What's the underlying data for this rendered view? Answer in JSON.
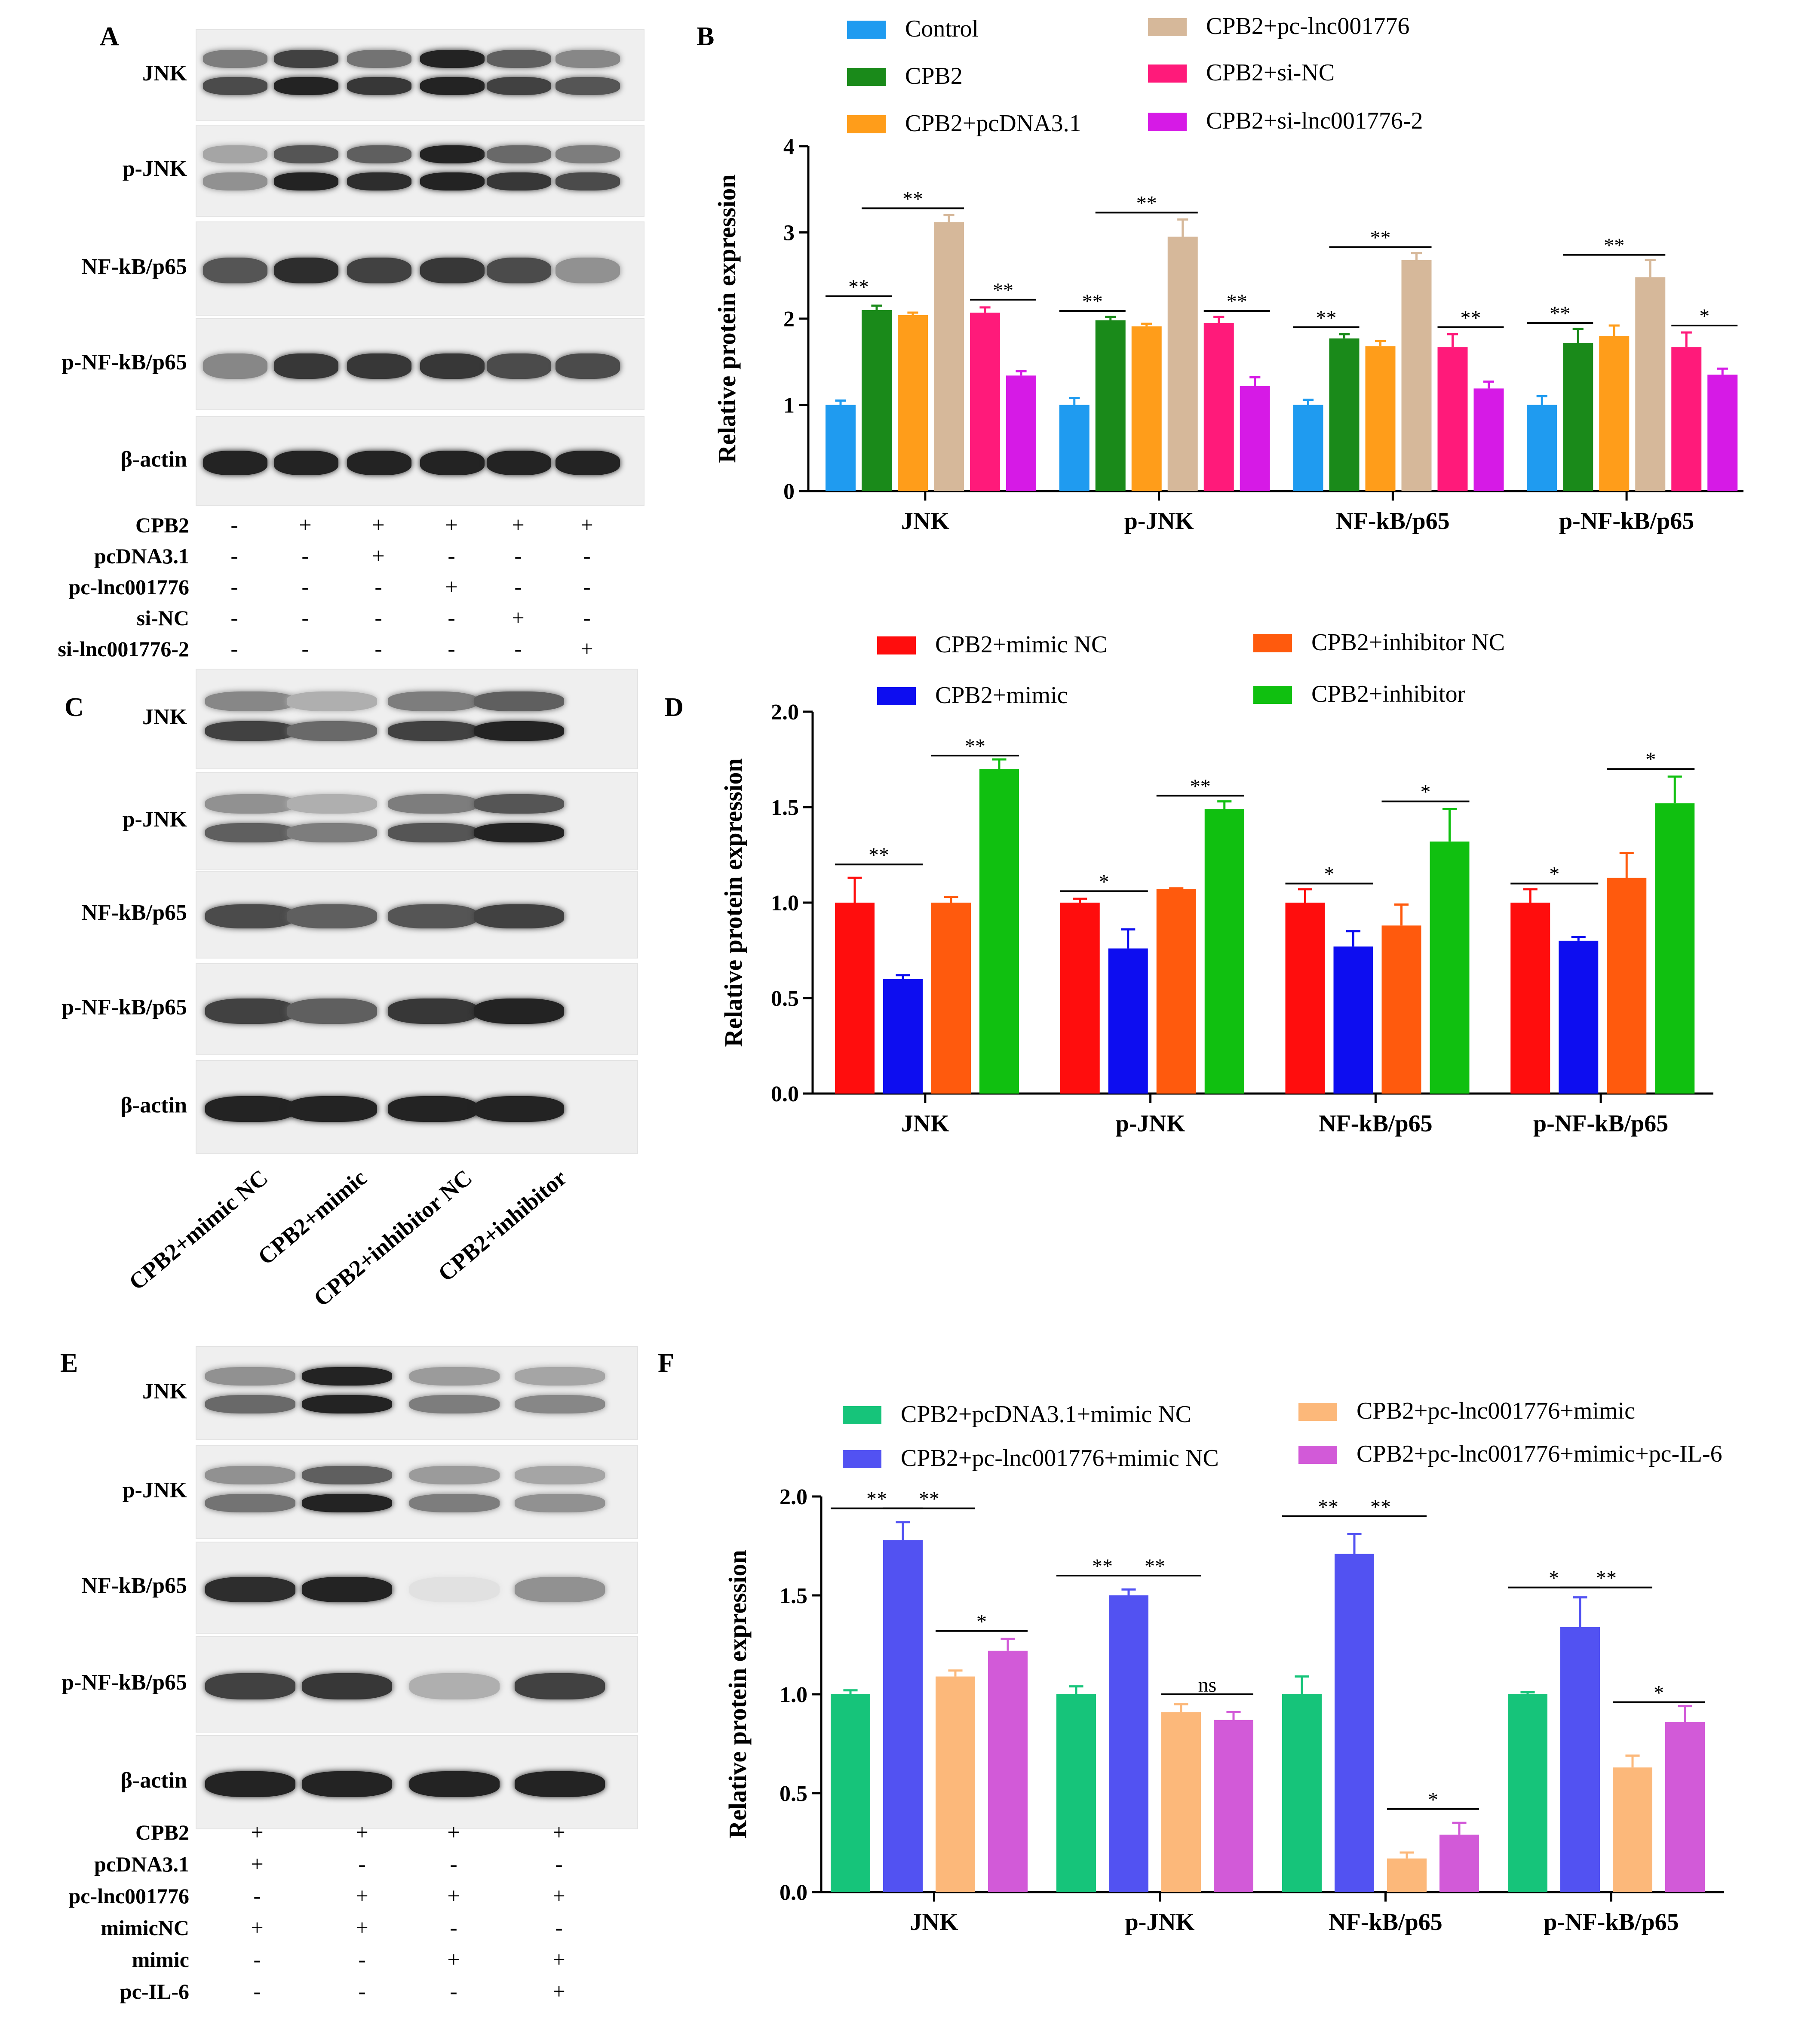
{
  "panel_letters": {
    "A": "A",
    "B": "B",
    "C": "C",
    "D": "D",
    "E": "E",
    "F": "F"
  },
  "blot_labels": [
    "JNK",
    "p-JNK",
    "NF-kB/p65",
    "p-NF-kB/p65",
    "β-actin"
  ],
  "treatment_A": {
    "rows": [
      {
        "label": "CPB2",
        "signs": [
          "-",
          "+",
          "+",
          "+",
          "+",
          "+"
        ]
      },
      {
        "label": "pcDNA3.1",
        "signs": [
          "-",
          "-",
          "+",
          "-",
          "-",
          "-"
        ]
      },
      {
        "label": "pc-lnc001776",
        "signs": [
          "-",
          "-",
          "-",
          "+",
          "-",
          "-"
        ]
      },
      {
        "label": "si-NC",
        "signs": [
          "-",
          "-",
          "-",
          "-",
          "+",
          "-"
        ]
      },
      {
        "label": "si-lnc001776-2",
        "signs": [
          "-",
          "-",
          "-",
          "-",
          "-",
          "+"
        ]
      }
    ]
  },
  "lane_labels_C": [
    "CPB2+mimic NC",
    "CPB2+mimic",
    "CPB2+inhibitor NC",
    "CPB2+inhibitor"
  ],
  "treatment_E": {
    "rows": [
      {
        "label": "CPB2",
        "signs": [
          "+",
          "+",
          "+",
          "+"
        ]
      },
      {
        "label": "pcDNA3.1",
        "signs": [
          "+",
          "-",
          "-",
          "-"
        ]
      },
      {
        "label": "pc-lnc001776",
        "signs": [
          "-",
          "+",
          "+",
          "+"
        ]
      },
      {
        "label": "mimicNC",
        "signs": [
          "+",
          "+",
          "-",
          "-"
        ]
      },
      {
        "label": "mimic",
        "signs": [
          "-",
          "-",
          "+",
          "+"
        ]
      },
      {
        "label": "pc-IL-6",
        "signs": [
          "-",
          "-",
          "-",
          "+"
        ]
      }
    ]
  },
  "chart_data": [
    {
      "id": "B",
      "type": "bar",
      "ylabel": "Relative protein expression",
      "ylim": [
        0,
        4
      ],
      "yticks": [
        0,
        1,
        2,
        3,
        4
      ],
      "ytick_labels": [
        "0",
        "1",
        "2",
        "3",
        "4"
      ],
      "categories": [
        "JNK",
        "p-JNK",
        "NF-kB/p65",
        "p-NF-kB/p65"
      ],
      "series": [
        {
          "name": "Control",
          "color": "#1f9bf0",
          "values": [
            1.0,
            1.0,
            1.0,
            1.0
          ],
          "err": [
            0.05,
            0.08,
            0.06,
            0.1
          ]
        },
        {
          "name": "CPB2",
          "color": "#1a8a1a",
          "values": [
            2.1,
            1.98,
            1.77,
            1.72
          ],
          "err": [
            0.05,
            0.04,
            0.05,
            0.16
          ]
        },
        {
          "name": "CPB2+pcDNA3.1",
          "color": "#ff9d1a",
          "values": [
            2.04,
            1.91,
            1.68,
            1.8
          ],
          "err": [
            0.03,
            0.03,
            0.06,
            0.12
          ]
        },
        {
          "name": "CPB2+pc-lnc001776",
          "color": "#d6b89a",
          "values": [
            3.12,
            2.95,
            2.68,
            2.48
          ],
          "err": [
            0.08,
            0.2,
            0.08,
            0.2
          ]
        },
        {
          "name": "CPB2+si-NC",
          "color": "#ff1a7a",
          "values": [
            2.07,
            1.95,
            1.67,
            1.67
          ],
          "err": [
            0.06,
            0.07,
            0.15,
            0.17
          ]
        },
        {
          "name": "CPB2+si-lnc001776-2",
          "color": "#d61ae6",
          "values": [
            1.34,
            1.22,
            1.19,
            1.35
          ],
          "err": [
            0.05,
            0.1,
            0.08,
            0.07
          ]
        }
      ],
      "significance": [
        {
          "cat": 0,
          "from": 0,
          "to": 1,
          "label": "**",
          "y": 2.26
        },
        {
          "cat": 0,
          "from": 1,
          "to": 3,
          "label": "**",
          "y": 3.28
        },
        {
          "cat": 0,
          "from": 4,
          "to": 5,
          "label": "**",
          "y": 2.22
        },
        {
          "cat": 1,
          "from": 0,
          "to": 1,
          "label": "**",
          "y": 2.09
        },
        {
          "cat": 1,
          "from": 1,
          "to": 3,
          "label": "**",
          "y": 3.23
        },
        {
          "cat": 1,
          "from": 4,
          "to": 5,
          "label": "**",
          "y": 2.09
        },
        {
          "cat": 2,
          "from": 0,
          "to": 1,
          "label": "**",
          "y": 1.9
        },
        {
          "cat": 2,
          "from": 1,
          "to": 3,
          "label": "**",
          "y": 2.83
        },
        {
          "cat": 2,
          "from": 4,
          "to": 5,
          "label": "**",
          "y": 1.9
        },
        {
          "cat": 3,
          "from": 0,
          "to": 1,
          "label": "**",
          "y": 1.95
        },
        {
          "cat": 3,
          "from": 1,
          "to": 3,
          "label": "**",
          "y": 2.74
        },
        {
          "cat": 3,
          "from": 4,
          "to": 5,
          "label": "*",
          "y": 1.92
        }
      ]
    },
    {
      "id": "D",
      "type": "bar",
      "ylabel": "Relative protein expression",
      "ylim": [
        0,
        2
      ],
      "yticks": [
        0,
        0.5,
        1,
        1.5,
        2
      ],
      "ytick_labels": [
        "0.0",
        "0.5",
        "1.0",
        "1.5",
        "2.0"
      ],
      "categories": [
        "JNK",
        "p-JNK",
        "NF-kB/p65",
        "p-NF-kB/p65"
      ],
      "series": [
        {
          "name": "CPB2+mimic NC",
          "color": "#ff0d0d",
          "values": [
            1.0,
            1.0,
            1.0,
            1.0
          ],
          "err": [
            0.13,
            0.02,
            0.07,
            0.07
          ]
        },
        {
          "name": "CPB2+mimic",
          "color": "#0d0df0",
          "values": [
            0.6,
            0.76,
            0.77,
            0.8
          ],
          "err": [
            0.02,
            0.1,
            0.08,
            0.02
          ]
        },
        {
          "name": "CPB2+inhibitor NC",
          "color": "#ff5a0d",
          "values": [
            1.0,
            1.07,
            0.88,
            1.13
          ],
          "err": [
            0.03,
            0.005,
            0.11,
            0.13
          ]
        },
        {
          "name": "CPB2+inhibitor",
          "color": "#10c010",
          "values": [
            1.7,
            1.49,
            1.32,
            1.52
          ],
          "err": [
            0.05,
            0.04,
            0.17,
            0.14
          ]
        }
      ],
      "significance": [
        {
          "cat": 0,
          "from": 0,
          "to": 1,
          "label": "**",
          "y": 1.2
        },
        {
          "cat": 0,
          "from": 2,
          "to": 3,
          "label": "**",
          "y": 1.77
        },
        {
          "cat": 1,
          "from": 0,
          "to": 1,
          "label": "*",
          "y": 1.06
        },
        {
          "cat": 1,
          "from": 2,
          "to": 3,
          "label": "**",
          "y": 1.56
        },
        {
          "cat": 2,
          "from": 0,
          "to": 1,
          "label": "*",
          "y": 1.1
        },
        {
          "cat": 2,
          "from": 2,
          "to": 3,
          "label": "*",
          "y": 1.53
        },
        {
          "cat": 3,
          "from": 0,
          "to": 1,
          "label": "*",
          "y": 1.1
        },
        {
          "cat": 3,
          "from": 2,
          "to": 3,
          "label": "*",
          "y": 1.7
        }
      ]
    },
    {
      "id": "F",
      "type": "bar",
      "ylabel": "Relative protein expression",
      "ylim": [
        0,
        2
      ],
      "yticks": [
        0,
        0.5,
        1,
        1.5,
        2
      ],
      "ytick_labels": [
        "0.0",
        "0.5",
        "1.0",
        "1.5",
        "2.0"
      ],
      "categories": [
        "JNK",
        "p-JNK",
        "NF-kB/p65",
        "p-NF-kB/p65"
      ],
      "series": [
        {
          "name": "CPB2+pcDNA3.1+mimic NC",
          "color": "#16c47a",
          "values": [
            1.0,
            1.0,
            1.0,
            1.0
          ],
          "err": [
            0.02,
            0.04,
            0.09,
            0.01
          ]
        },
        {
          "name": "CPB2+pc-lnc001776+mimic NC",
          "color": "#5252f2",
          "values": [
            1.78,
            1.5,
            1.71,
            1.34
          ],
          "err": [
            0.09,
            0.03,
            0.1,
            0.15
          ]
        },
        {
          "name": "CPB2+pc-lnc001776+mimic",
          "color": "#fcb87a",
          "values": [
            1.09,
            0.91,
            0.17,
            0.63
          ],
          "err": [
            0.03,
            0.04,
            0.03,
            0.06
          ]
        },
        {
          "name": "CPB2+pc-lnc001776+mimic+pc-IL-6",
          "color": "#d25ad8",
          "values": [
            1.22,
            0.87,
            0.29,
            0.86
          ],
          "err": [
            0.06,
            0.04,
            0.06,
            0.08
          ]
        }
      ],
      "significance": [
        {
          "cat": 0,
          "from": 0,
          "to": 1,
          "label": "**",
          "y": 1.94
        },
        {
          "cat": 0,
          "from": 1,
          "to": 2,
          "label": "**",
          "y": 1.94
        },
        {
          "cat": 0,
          "from": 2,
          "to": 3,
          "label": "*",
          "y": 1.32
        },
        {
          "cat": 1,
          "from": 0,
          "to": 1,
          "label": "**",
          "y": 1.6
        },
        {
          "cat": 1,
          "from": 1,
          "to": 2,
          "label": "**",
          "y": 1.6
        },
        {
          "cat": 1,
          "from": 2,
          "to": 3,
          "label": "ns",
          "y": 1.0
        },
        {
          "cat": 2,
          "from": 0,
          "to": 1,
          "label": "**",
          "y": 1.9
        },
        {
          "cat": 2,
          "from": 1,
          "to": 2,
          "label": "**",
          "y": 1.9
        },
        {
          "cat": 2,
          "from": 2,
          "to": 3,
          "label": "*",
          "y": 0.42
        },
        {
          "cat": 3,
          "from": 0,
          "to": 1,
          "label": "*",
          "y": 1.54
        },
        {
          "cat": 3,
          "from": 1,
          "to": 2,
          "label": "**",
          "y": 1.54
        },
        {
          "cat": 3,
          "from": 2,
          "to": 3,
          "label": "*",
          "y": 0.96
        }
      ]
    }
  ]
}
